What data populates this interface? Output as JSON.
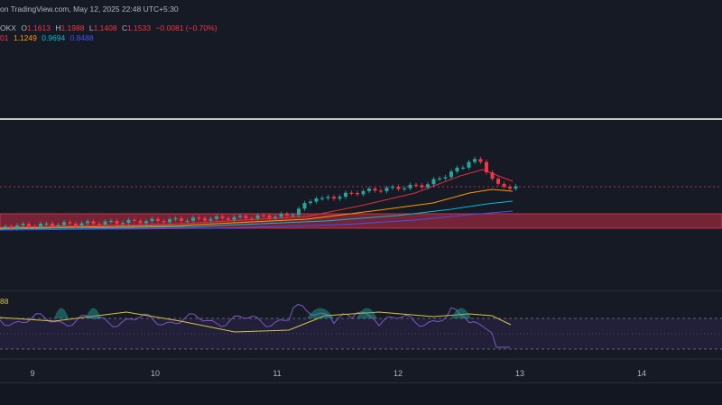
{
  "header": {
    "source_line": "on TradingView.com, May 12, 2025 22:48 UTC+5:30",
    "symbol_suffix": "OKX",
    "open_label": "O",
    "open": "1.1613",
    "high_label": "H",
    "high": "1.1988",
    "low_label": "L",
    "low": "1.1408",
    "close_label": "C",
    "close": "1.1533",
    "change": "−0.0081 (−0.70%)",
    "ma_values": {
      "ma1_fragment": "01",
      "ma2": "1.1249",
      "ma3": "0.9694",
      "ma4": "0.8488"
    }
  },
  "rsi": {
    "value_fragment": "88"
  },
  "x_axis": {
    "labels": [
      "9",
      "10",
      "11",
      "12",
      "13",
      "14"
    ]
  },
  "colors": {
    "background": "#161a25",
    "up_candle": "#26a69a",
    "down_candle": "#f23645",
    "support_zone": "#9e2a3c",
    "resistance_line": "#ffffff",
    "ma_red": "#e0303e",
    "ma_orange": "#ff9800",
    "ma_cyan": "#00bcd4",
    "ma_blue": "#3f51f5",
    "rsi_line": "#7e57c2",
    "rsi_ma": "#d6c24a"
  }
}
